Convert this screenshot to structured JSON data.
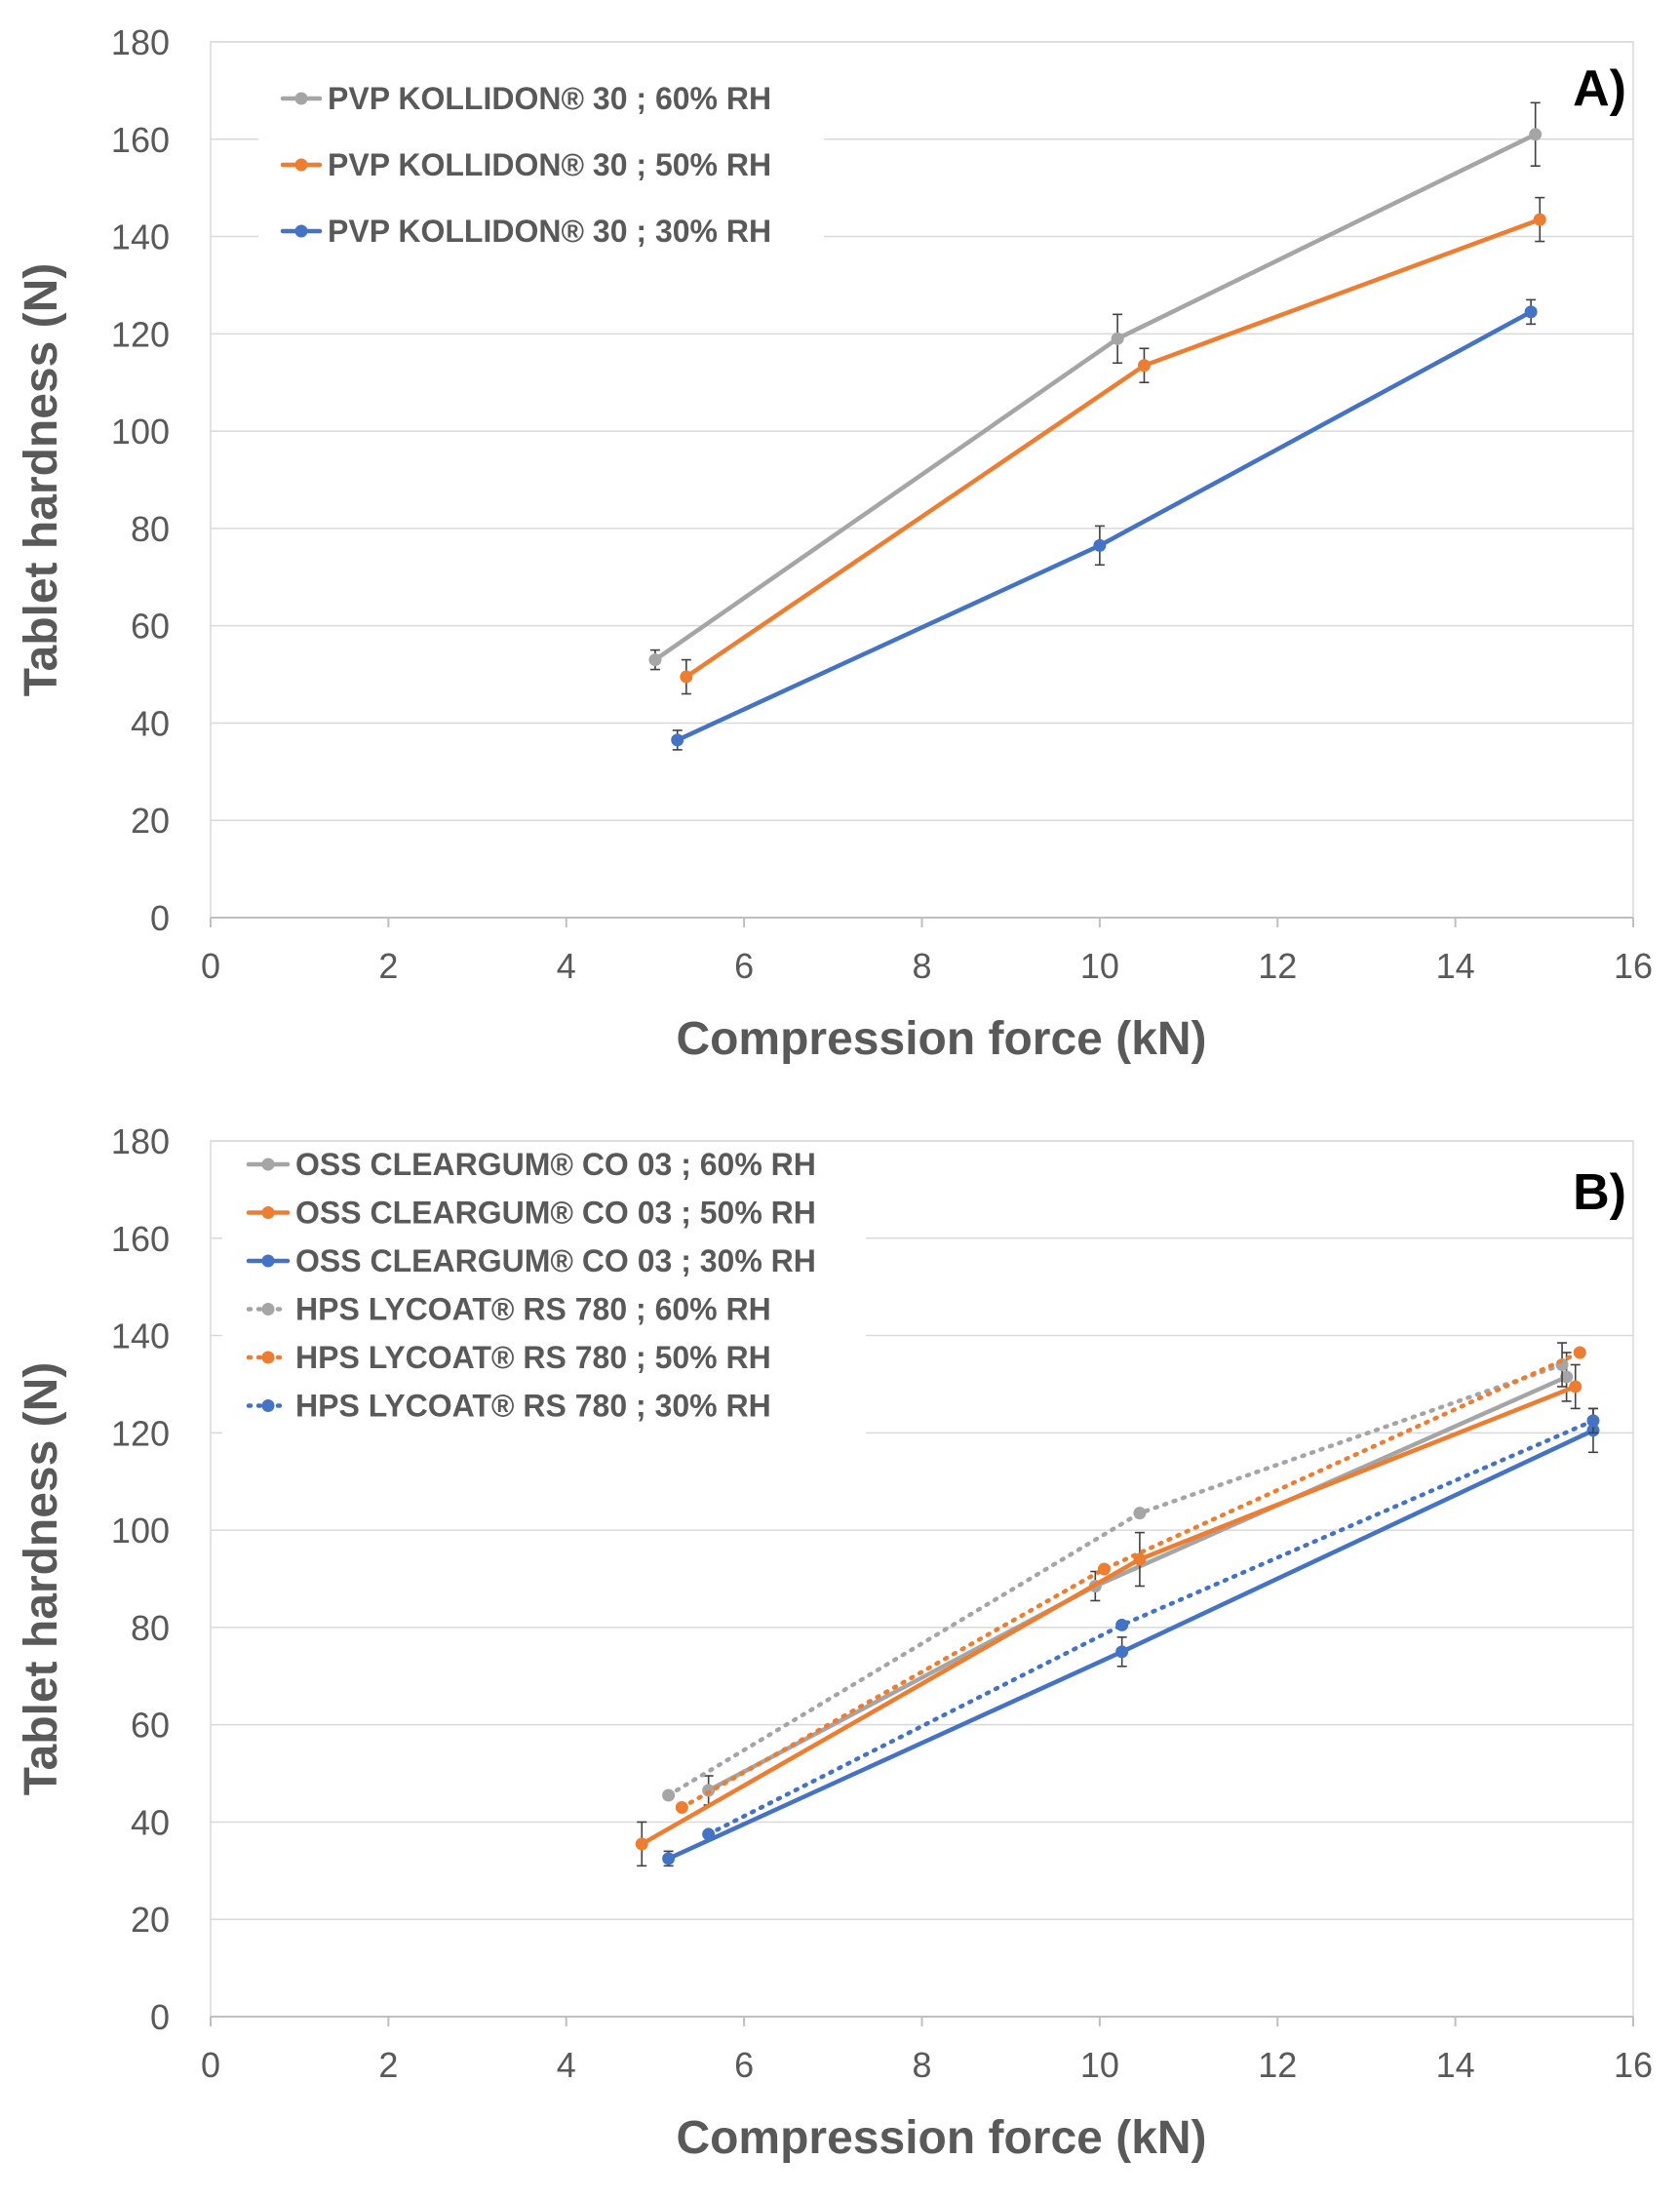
{
  "chart_data": [
    {
      "type": "line",
      "panel_label": "A)",
      "xlabel": "Compression force (kN)",
      "ylabel": "Tablet hardness (N)",
      "xlim": [
        0,
        16
      ],
      "ylim": [
        0,
        180
      ],
      "xticks": [
        0,
        2,
        4,
        6,
        8,
        10,
        12,
        14,
        16
      ],
      "yticks": [
        0,
        20,
        40,
        60,
        80,
        100,
        120,
        140,
        160,
        180
      ],
      "grid": "horizontal",
      "legend_position": "top-left",
      "series": [
        {
          "name": "PVP KOLLIDON® 30 ; 60% RH",
          "color": "#a5a5a5",
          "style": "solid",
          "x": [
            5.0,
            10.2,
            14.9
          ],
          "y": [
            53,
            119,
            161
          ],
          "err": [
            2,
            5,
            6.5
          ]
        },
        {
          "name": "PVP KOLLIDON® 30 ; 50% RH",
          "color": "#ed7d31",
          "style": "solid",
          "x": [
            5.35,
            10.5,
            14.95
          ],
          "y": [
            49.5,
            113.5,
            143.5
          ],
          "err": [
            3.5,
            3.5,
            4.5
          ]
        },
        {
          "name": "PVP KOLLIDON® 30 ; 30% RH",
          "color": "#4472c4",
          "style": "solid",
          "x": [
            5.25,
            10.0,
            14.85
          ],
          "y": [
            36.5,
            76.5,
            124.5
          ],
          "err": [
            2,
            4,
            2.5
          ]
        }
      ]
    },
    {
      "type": "line",
      "panel_label": "B)",
      "xlabel": "Compression force (kN)",
      "ylabel": "Tablet hardness (N)",
      "xlim": [
        0,
        16
      ],
      "ylim": [
        0,
        180
      ],
      "xticks": [
        0,
        2,
        4,
        6,
        8,
        10,
        12,
        14,
        16
      ],
      "yticks": [
        0,
        20,
        40,
        60,
        80,
        100,
        120,
        140,
        160,
        180
      ],
      "grid": "horizontal",
      "legend_position": "top-left",
      "series": [
        {
          "name": "OSS CLEARGUM® CO 03 ; 60% RH",
          "color": "#a5a5a5",
          "style": "solid",
          "x": [
            5.6,
            9.95,
            15.25
          ],
          "y": [
            46.5,
            88.5,
            131.5
          ],
          "err": [
            3,
            3,
            5
          ]
        },
        {
          "name": "OSS CLEARGUM® CO 03 ; 50% RH",
          "color": "#ed7d31",
          "style": "solid",
          "x": [
            4.85,
            10.45,
            15.35
          ],
          "y": [
            35.5,
            94,
            129.5
          ],
          "err": [
            4.5,
            5.5,
            4.5
          ]
        },
        {
          "name": "OSS CLEARGUM® CO 03 ; 30% RH",
          "color": "#4472c4",
          "style": "solid",
          "x": [
            5.15,
            10.25,
            15.55
          ],
          "y": [
            32.5,
            75,
            120.5
          ],
          "err": [
            1.5,
            3,
            4.5
          ]
        },
        {
          "name": "HPS LYCOAT® RS 780 ; 60% RH",
          "color": "#a5a5a5",
          "style": "dotted",
          "x": [
            5.15,
            10.45,
            15.2
          ],
          "y": [
            45.5,
            103.5,
            134
          ],
          "err": [
            0,
            0,
            4.5
          ]
        },
        {
          "name": "HPS LYCOAT® RS 780 ; 50% RH",
          "color": "#ed7d31",
          "style": "dotted",
          "x": [
            5.3,
            10.05,
            15.4
          ],
          "y": [
            43,
            92,
            136.5
          ],
          "err": [
            0,
            0,
            0
          ]
        },
        {
          "name": "HPS LYCOAT® RS 780 ; 30% RH",
          "color": "#4472c4",
          "style": "dotted",
          "x": [
            5.6,
            10.25,
            15.55
          ],
          "y": [
            37.5,
            80.5,
            122.5
          ],
          "err": [
            0,
            0,
            2.5
          ]
        }
      ]
    }
  ]
}
